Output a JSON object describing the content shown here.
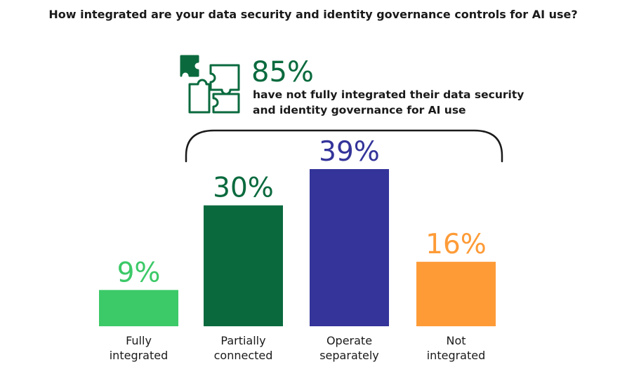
{
  "chart_data": {
    "type": "bar",
    "title": "How integrated are your data security and identity governance controls for AI use?",
    "categories": [
      [
        "Fully",
        "integrated"
      ],
      [
        "Partially",
        "connected"
      ],
      [
        "Operate",
        "separately"
      ],
      [
        "Not",
        "integrated"
      ]
    ],
    "values": [
      9,
      30,
      39,
      16
    ],
    "value_labels": [
      "9%",
      "30%",
      "39%",
      "16%"
    ],
    "colors": [
      "#3cc968",
      "#0a6a3e",
      "#34349a",
      "#fe9b37"
    ],
    "ylim": [
      0,
      39
    ],
    "grid": false,
    "legend": "none",
    "callout": {
      "value": "85%",
      "text": [
        "have not fully integrated their data security",
        "and identity governance for AI use"
      ],
      "icon": "puzzle-icon",
      "color": "#0a6a3e"
    }
  }
}
